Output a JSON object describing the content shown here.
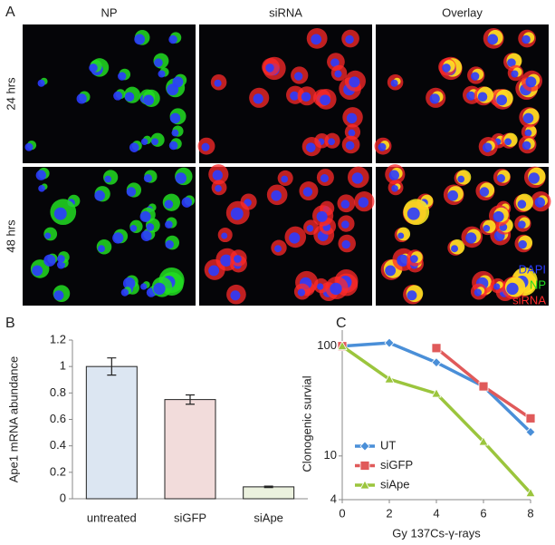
{
  "panel_a": {
    "panel": "A",
    "columns": [
      "NP",
      "siRNA",
      "Overlay"
    ],
    "rows": [
      "24 hrs",
      "48 hrs"
    ],
    "legend": [
      {
        "name": "DAPI",
        "color": "#2b3cff"
      },
      {
        "name": "NP",
        "color": "#22dd22"
      },
      {
        "name": "siRNA",
        "color": "#ff2a2a"
      }
    ]
  },
  "chart_data": [
    {
      "type": "bar",
      "panel": "B",
      "ylabel": "Ape1 mRNA abundance",
      "categories": [
        "untreated",
        "siGFP",
        "siApe"
      ],
      "values": [
        1.0,
        0.75,
        0.09
      ],
      "errors": [
        0.065,
        0.035,
        0.005
      ],
      "colors": [
        "#dce6f2",
        "#f2dcdb",
        "#ebf1de"
      ],
      "ylim": [
        0,
        1.2
      ],
      "yticks": [
        0,
        0.2,
        0.4,
        0.6,
        0.8,
        1,
        1.2
      ]
    },
    {
      "type": "line",
      "panel": "C",
      "xlabel": "Gy 137Cs-γ-rays",
      "ylabel": "Clonogenic survial",
      "x": [
        0,
        2,
        4,
        6,
        8
      ],
      "series": [
        {
          "name": "UT",
          "color": "#4a8fd8",
          "marker": "diamond",
          "values": [
            100,
            107,
            71,
            43,
            16.5
          ]
        },
        {
          "name": "siGFP",
          "color": "#e05a5a",
          "marker": "square",
          "values": [
            100,
            null,
            96,
            43,
            22
          ]
        },
        {
          "name": "siApe",
          "color": "#9bc53d",
          "marker": "triangle",
          "values": [
            100,
            50,
            37,
            13.5,
            4.6
          ]
        }
      ],
      "xlim": [
        0,
        8
      ],
      "xticks": [
        0,
        2,
        4,
        6,
        8
      ],
      "ylim": [
        4,
        140
      ],
      "yticks": [
        4,
        10,
        100
      ],
      "log_y": true,
      "legend": "lower left"
    }
  ]
}
